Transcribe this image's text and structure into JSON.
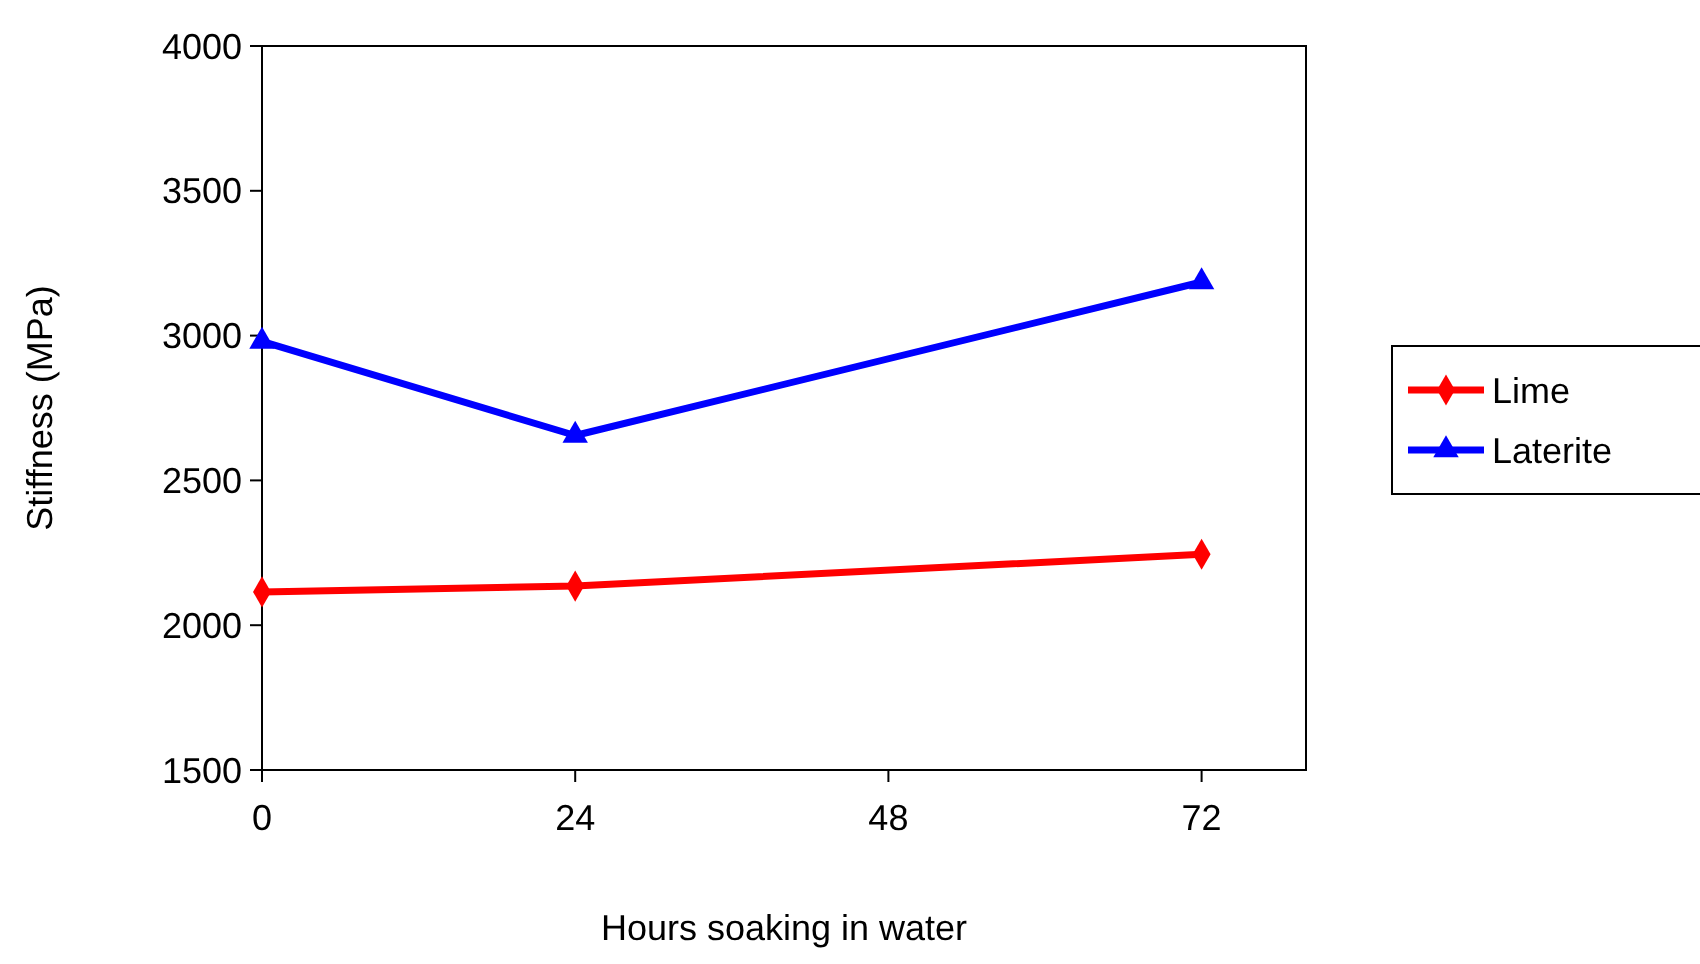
{
  "chart_data": {
    "type": "line",
    "xlabel": "Hours soaking in water",
    "ylabel": "Stiffness (MPa)",
    "x": [
      0,
      24,
      72
    ],
    "xlim": [
      0,
      80
    ],
    "xticks": [
      0,
      24,
      48,
      72
    ],
    "ylim": [
      1500,
      4000
    ],
    "yticks": [
      1500,
      2000,
      2500,
      3000,
      3500,
      4000
    ],
    "legend": "right",
    "grid": false,
    "line_style": "solid",
    "series": [
      {
        "name": "Lime",
        "color": "#ff0000",
        "marker": "diamond",
        "values": [
          2115,
          2135,
          2245
        ]
      },
      {
        "name": "Laterite",
        "color": "#0000ff",
        "marker": "triangle",
        "values": [
          2980,
          2655,
          3185
        ]
      }
    ]
  }
}
